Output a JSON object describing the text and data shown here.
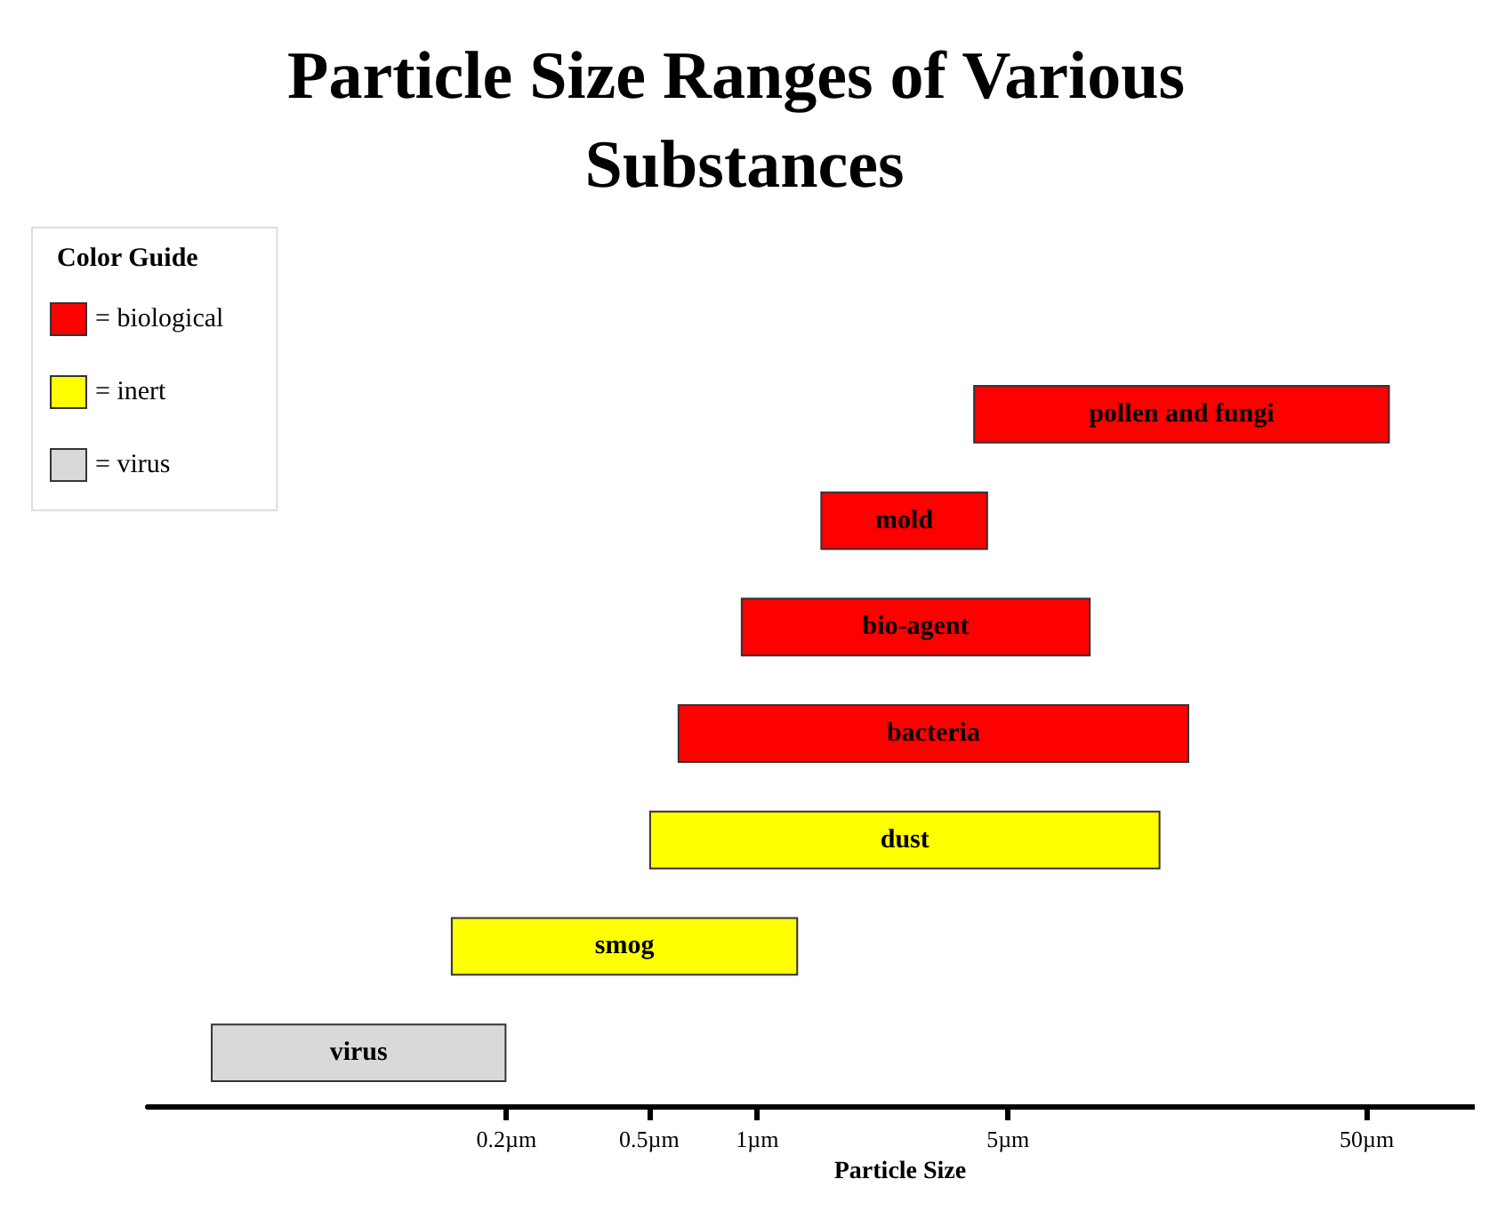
{
  "chart_data": {
    "type": "bar",
    "orientation": "horizontal",
    "title": "Particle Size Ranges of Various Substances",
    "xlabel": "Particle Size",
    "legend_title": "Color Guide",
    "legend": "top left",
    "log": "x",
    "grid": false,
    "tick_labels": "x",
    "categories": [
      "pollen and fungi",
      "mold",
      "bio-agent",
      "bacteria",
      "dust",
      "smog",
      "virus"
    ],
    "series": [
      {
        "name": "= biological",
        "color": "#ff0000",
        "base": [
          4,
          1.5,
          0.9,
          0.6,
          null,
          null,
          null
        ],
        "values": [
          54,
          2.9,
          7.6,
          15.4,
          null,
          null,
          null
        ]
      },
      {
        "name": "= inert",
        "color": "#ffff00",
        "base": [
          null,
          null,
          null,
          null,
          0.5,
          0.14,
          null
        ],
        "values": [
          null,
          null,
          null,
          null,
          12.8,
          1.16,
          null
        ]
      },
      {
        "name": "= virus",
        "color": "#d9d9d9",
        "base": [
          null,
          null,
          null,
          null,
          null,
          null,
          0.03
        ],
        "values": [
          null,
          null,
          null,
          null,
          null,
          null,
          0.17
        ]
      }
    ],
    "xlim": [
      0.02,
      100
    ],
    "xticks": [
      {
        "value": 0.2,
        "label": "0.2µm"
      },
      {
        "value": 0.5,
        "label": "0.5µm"
      },
      {
        "value": 1,
        "label": "1µm"
      },
      {
        "value": 5,
        "label": "5µm"
      },
      {
        "value": 50,
        "label": "50µm"
      }
    ]
  }
}
